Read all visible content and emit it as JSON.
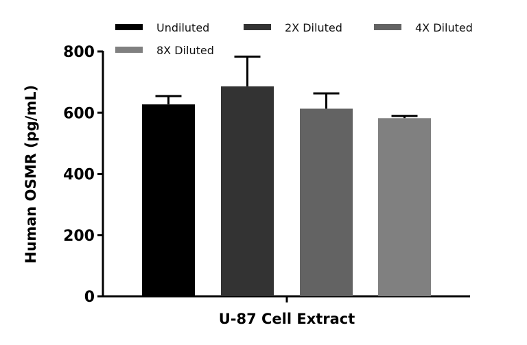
{
  "chart_data": {
    "type": "bar",
    "title": "",
    "xlabel": "U-87 Cell Extract",
    "ylabel": "Human OSMR (pg/mL)",
    "ylim": [
      0,
      800
    ],
    "yticks": [
      "0",
      "200",
      "400",
      "600",
      "800"
    ],
    "grid": false,
    "legend_position": "top",
    "series": [
      {
        "name": "Undiluted",
        "value": 627,
        "error": 27,
        "color": "#000000"
      },
      {
        "name": "2X Diluted",
        "value": 686,
        "error": 97,
        "color": "#333333"
      },
      {
        "name": "4X Diluted",
        "value": 613,
        "error": 50,
        "color": "#636363"
      },
      {
        "name": "8X Diluted",
        "value": 582,
        "error": 7,
        "color": "#808080"
      }
    ]
  }
}
